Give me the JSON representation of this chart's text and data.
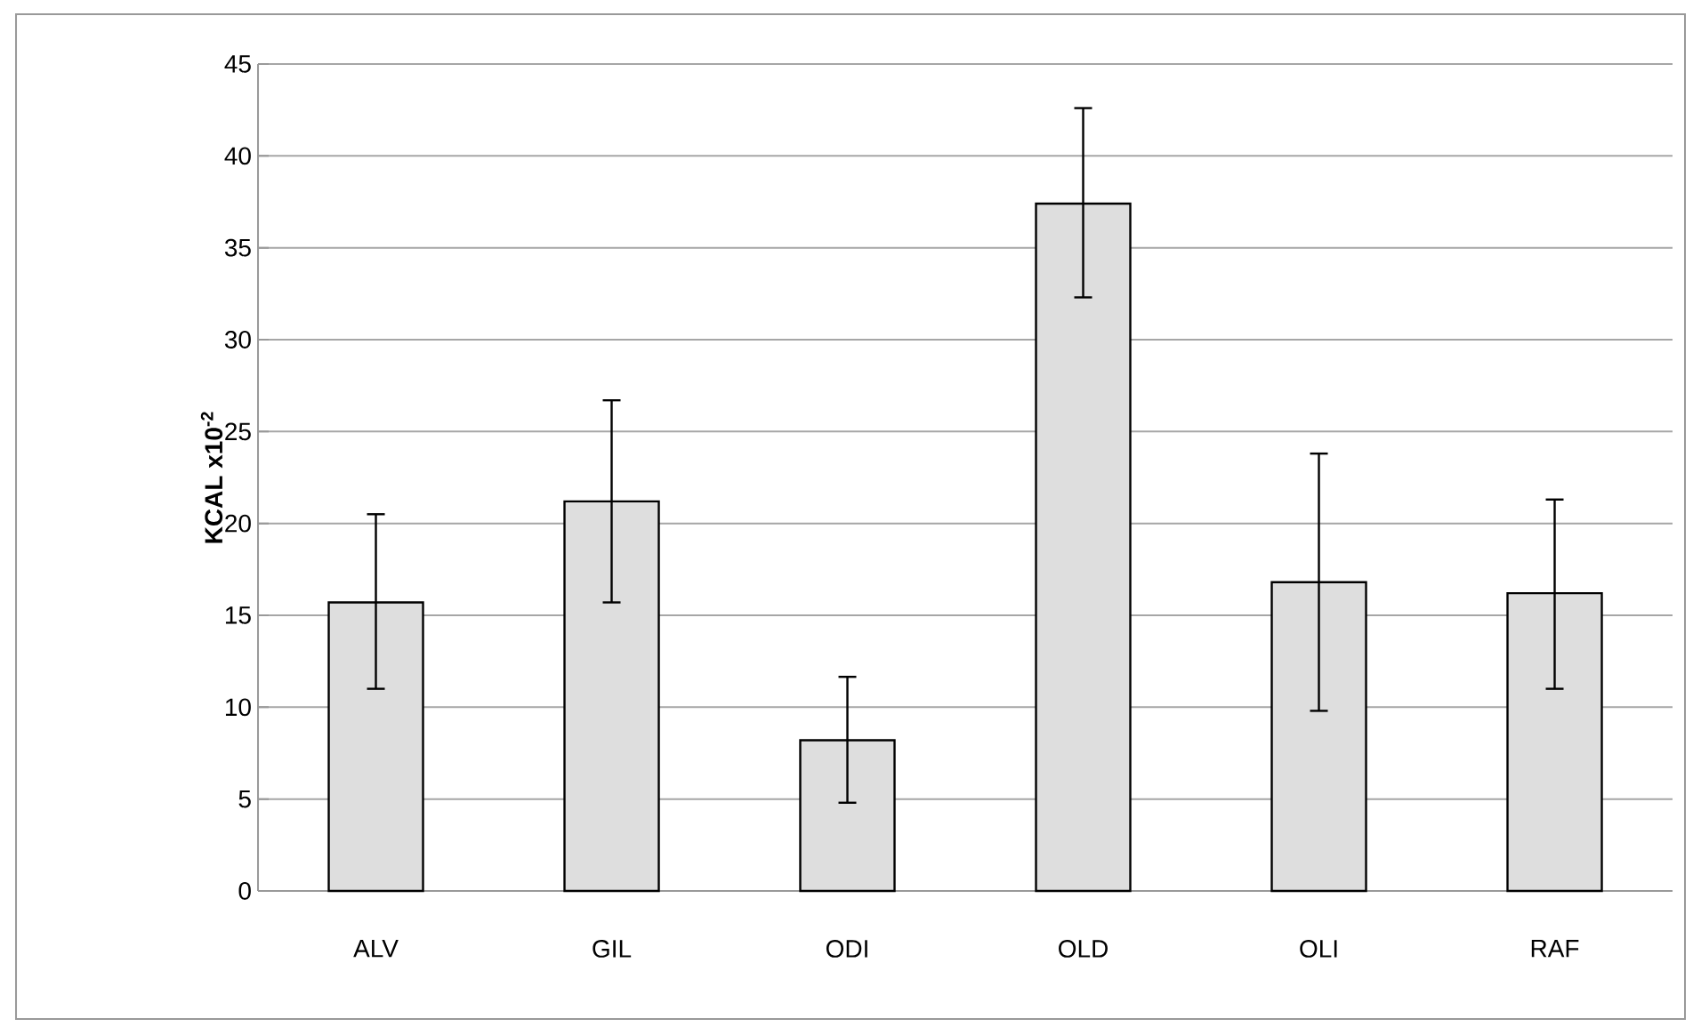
{
  "chart_data": {
    "type": "bar",
    "ylabel": "KCAL x10$^{-2}$",
    "categories": [
      "ALV",
      "GIL",
      "ODI",
      "OLD",
      "OLI",
      "RAF"
    ],
    "values": [
      15.7,
      21.2,
      8.2,
      37.4,
      16.8,
      16.2
    ],
    "errors": [
      [
        11.0,
        20.5
      ],
      [
        15.7,
        26.7
      ],
      [
        4.8,
        11.65
      ],
      [
        32.3,
        42.6
      ],
      [
        9.8,
        23.8
      ],
      [
        11.0,
        21.3
      ]
    ],
    "color": "#dedede",
    "ylim": [
      0,
      45
    ],
    "yticks": [
      0,
      5,
      10,
      15,
      20,
      25,
      30,
      35,
      40,
      45
    ],
    "grid": "y"
  }
}
